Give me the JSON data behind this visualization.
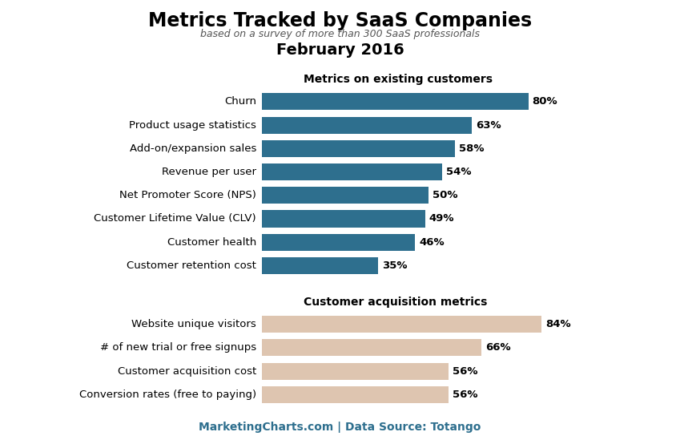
{
  "title": "Metrics Tracked by SaaS Companies",
  "subtitle": "based on a survey of more than 300 SaaS professionals",
  "date_label": "February 2016",
  "footer": "MarketingCharts.com | Data Source: Totango",
  "group1_label": "Metrics on existing customers",
  "group1_color": "#2E6F8E",
  "group1_categories": [
    "Churn",
    "Product usage statistics",
    "Add-on/expansion sales",
    "Revenue per user",
    "Net Promoter Score (NPS)",
    "Customer Lifetime Value (CLV)",
    "Customer health",
    "Customer retention cost"
  ],
  "group1_values": [
    80,
    63,
    58,
    54,
    50,
    49,
    46,
    35
  ],
  "group2_label": "Customer acquisition metrics",
  "group2_color": "#DEC5B0",
  "group2_categories": [
    "Website unique visitors",
    "# of new trial or free signups",
    "Customer acquisition cost",
    "Conversion rates (free to paying)"
  ],
  "group2_values": [
    84,
    66,
    56,
    56
  ],
  "background_color": "#FFFFFF",
  "footer_bg_color": "#C8C8C8",
  "footer_text_color": "#2E6F8E",
  "value_label_fontsize": 9.5,
  "cat_label_fontsize": 9.5,
  "title_fontsize": 17,
  "subtitle_fontsize": 9,
  "date_fontsize": 14,
  "group_header_fontsize": 10,
  "footer_fontsize": 10
}
